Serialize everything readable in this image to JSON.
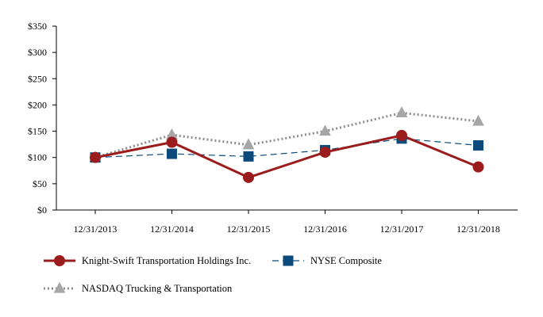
{
  "chart_data": {
    "type": "line",
    "title": "",
    "xlabel": "",
    "ylabel": "",
    "categories": [
      "12/31/2013",
      "12/31/2014",
      "12/31/2015",
      "12/31/2016",
      "12/31/2017",
      "12/31/2018"
    ],
    "ylim": [
      0,
      350
    ],
    "y_ticks": [
      0,
      50,
      100,
      150,
      200,
      250,
      300,
      350
    ],
    "y_tick_labels": [
      "$0",
      "$50",
      "$100",
      "$150",
      "$200",
      "$250",
      "$300",
      "$350"
    ],
    "grid": false,
    "legend_position": "bottom",
    "series": [
      {
        "name": "Knight-Swift Transportation Holdings Inc.",
        "values": [
          100,
          129,
          62,
          110,
          142,
          82
        ],
        "color": "#9b1c1c",
        "line": "solid",
        "marker": "circle"
      },
      {
        "name": "NYSE Composite",
        "values": [
          100,
          107,
          102,
          114,
          136,
          123
        ],
        "color": "#0b4a7a",
        "line": "dashed",
        "marker": "square"
      },
      {
        "name": "NASDAQ Trucking & Transportation",
        "values": [
          100,
          143,
          124,
          150,
          185,
          169
        ],
        "color": "#8c8c8c",
        "line": "dotted",
        "marker": "triangle"
      }
    ]
  }
}
